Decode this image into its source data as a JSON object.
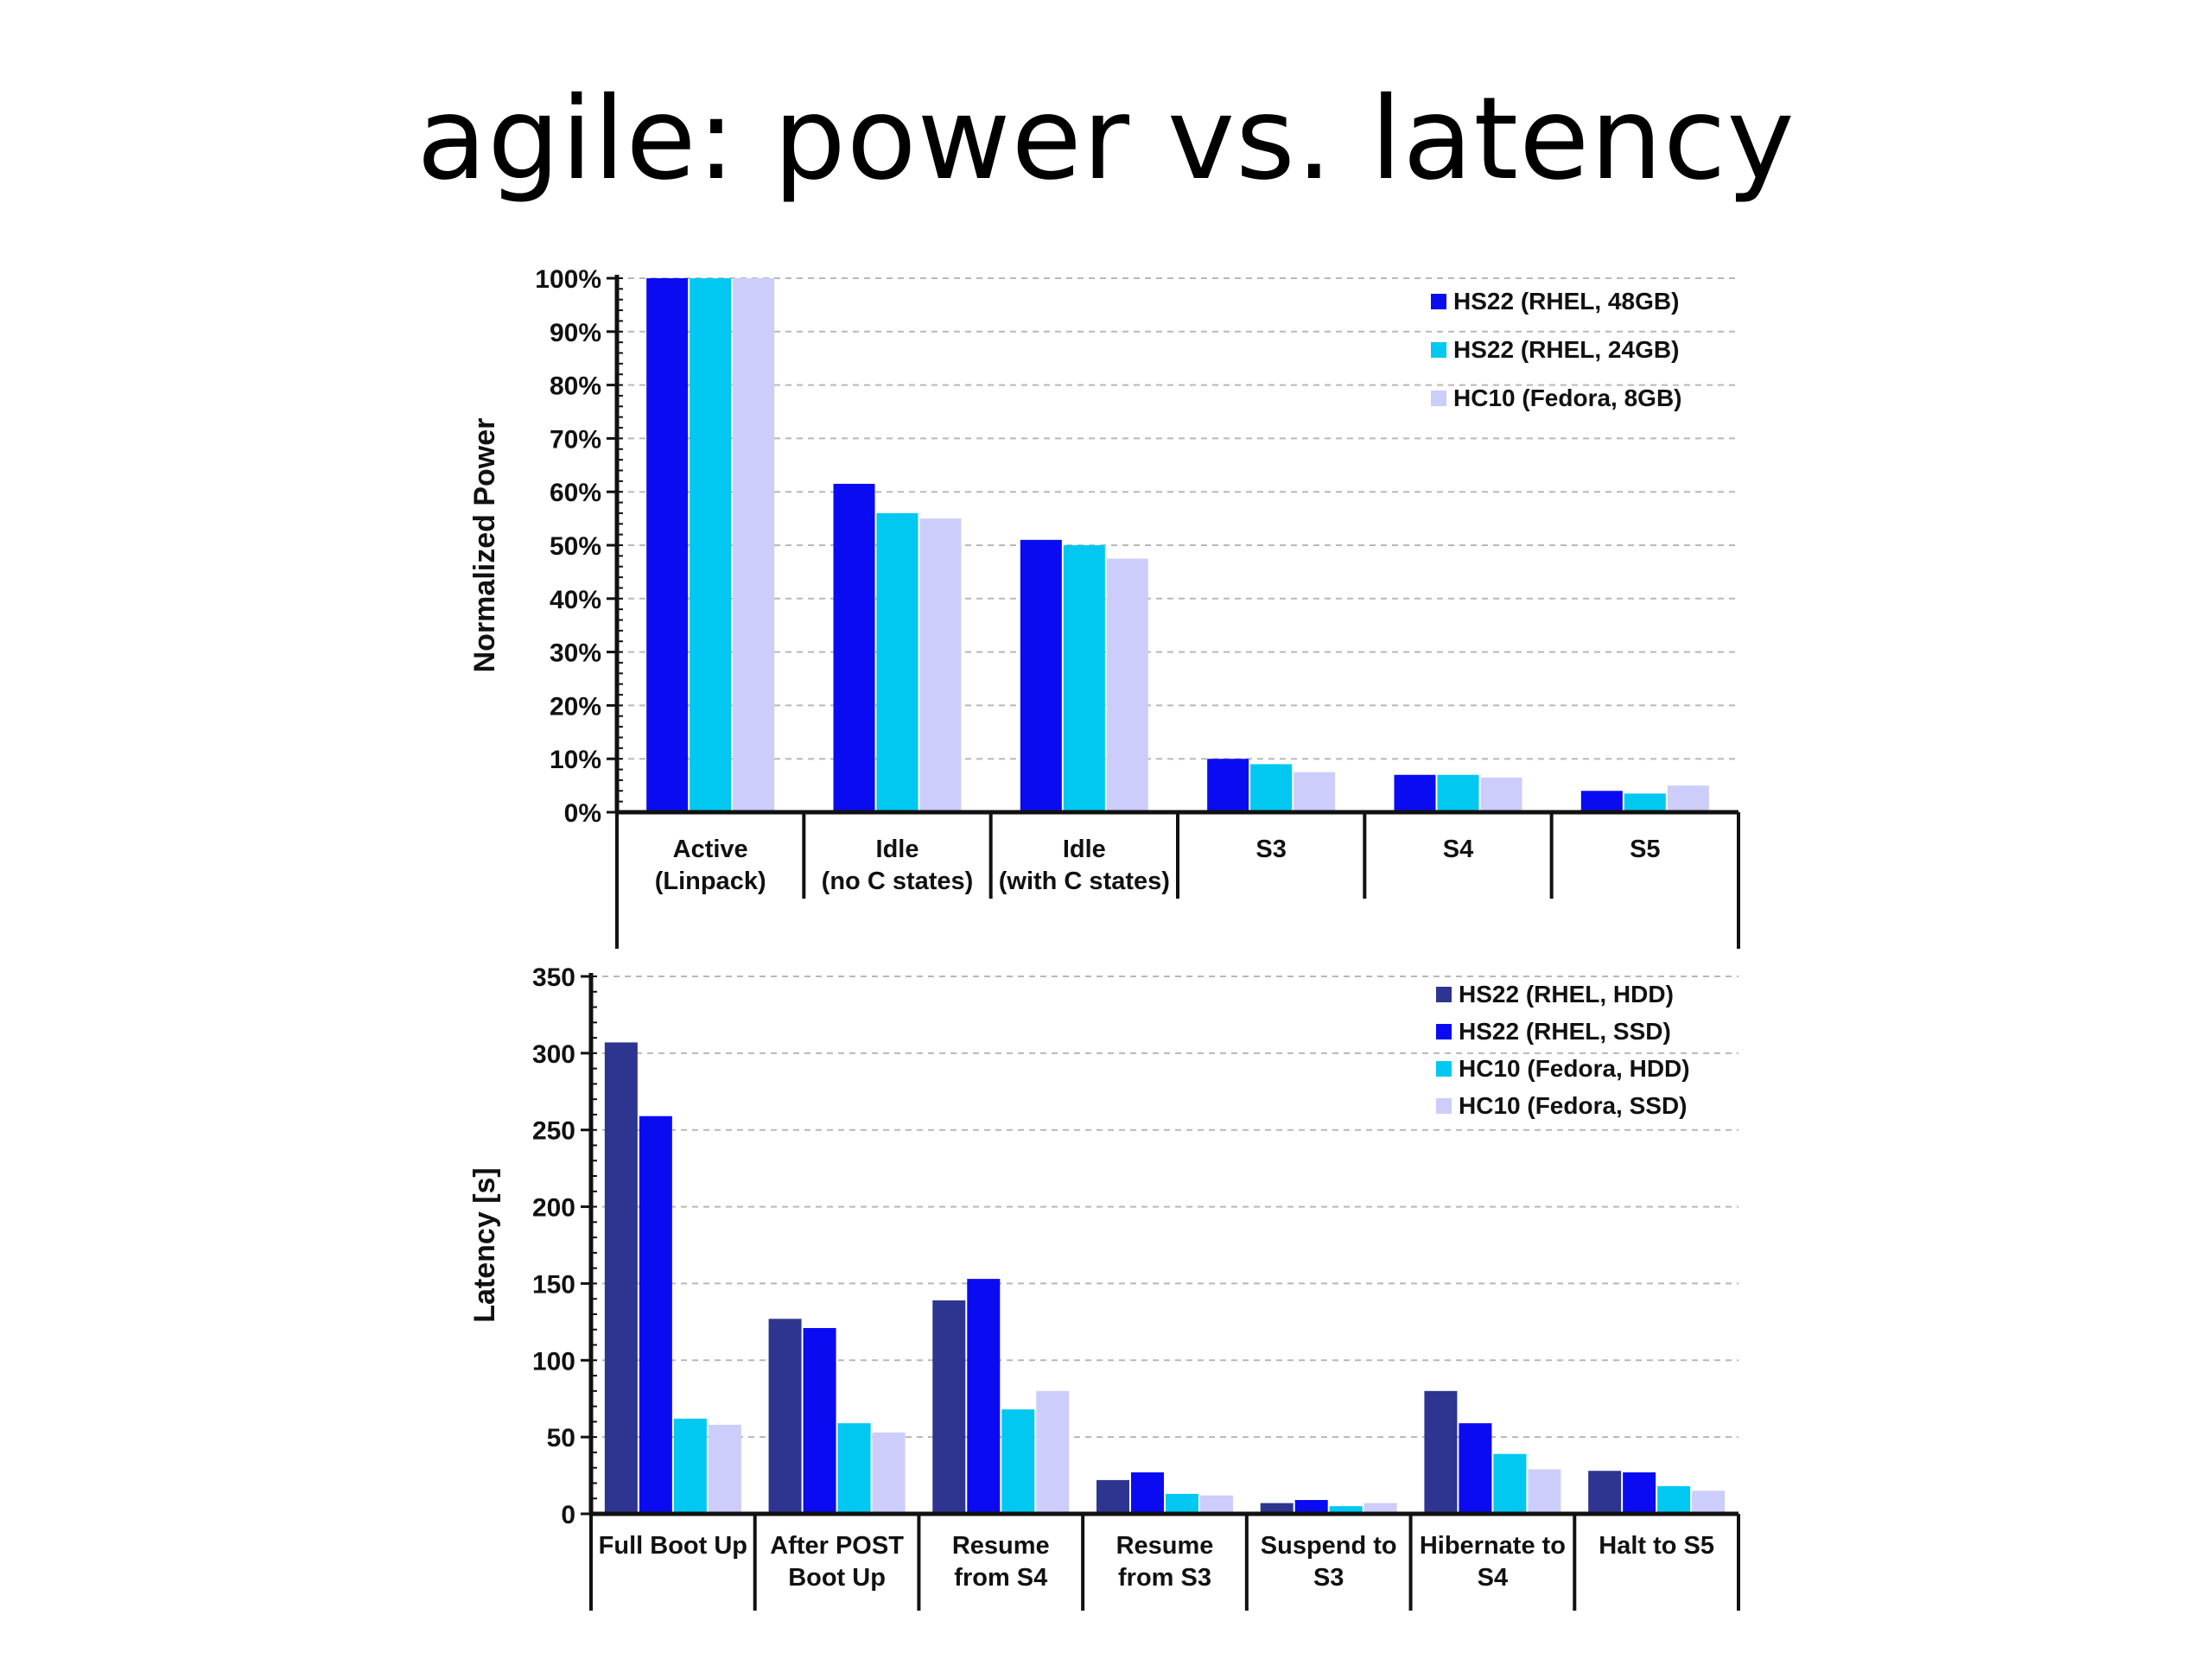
{
  "slide": {
    "title": "agile: power vs. latency"
  },
  "colors": {
    "navy": "#2e3590",
    "blue": "#0b0bf2",
    "cyan": "#00c8f0",
    "lavender": "#cccdfa"
  },
  "chart_data": [
    {
      "type": "bar",
      "title": "",
      "xlabel": "",
      "ylabel": "Normalized Power",
      "ylim": [
        0,
        100
      ],
      "yticks": [
        "0%",
        "10%",
        "20%",
        "30%",
        "40%",
        "50%",
        "60%",
        "70%",
        "80%",
        "90%",
        "100%"
      ],
      "grid": true,
      "legend_position": "top-right",
      "categories": [
        [
          "Active",
          "(Linpack)"
        ],
        [
          "Idle",
          "(no C states)"
        ],
        [
          "Idle",
          "(with C states)"
        ],
        [
          "S3"
        ],
        [
          "S4"
        ],
        [
          "S5"
        ]
      ],
      "series": [
        {
          "name": "HS22 (RHEL, 48GB)",
          "color": "#0b0bf2",
          "values": [
            100,
            61.5,
            51,
            10,
            7,
            4
          ]
        },
        {
          "name": "HS22 (RHEL, 24GB)",
          "color": "#00c8f0",
          "values": [
            100,
            56,
            50,
            9,
            7,
            3.5
          ]
        },
        {
          "name": "HC10 (Fedora, 8GB)",
          "color": "#cccdfa",
          "values": [
            100,
            55,
            47.5,
            7.5,
            6.5,
            5
          ]
        }
      ]
    },
    {
      "type": "bar",
      "title": "",
      "xlabel": "",
      "ylabel": "Latency [s]",
      "ylim": [
        0,
        350
      ],
      "yticks": [
        "0",
        "50",
        "100",
        "150",
        "200",
        "250",
        "300",
        "350"
      ],
      "grid": true,
      "legend_position": "top-right",
      "categories": [
        [
          "Full Boot Up"
        ],
        [
          "After POST",
          "Boot Up"
        ],
        [
          "Resume",
          "from S4"
        ],
        [
          "Resume",
          "from S3"
        ],
        [
          "Suspend to",
          "S3"
        ],
        [
          "Hibernate to",
          "S4"
        ],
        [
          "Halt to S5"
        ]
      ],
      "series": [
        {
          "name": "HS22 (RHEL, HDD)",
          "color": "#2e3590",
          "values": [
            307,
            127,
            139,
            22,
            7,
            80,
            28
          ]
        },
        {
          "name": "HS22 (RHEL, SSD)",
          "color": "#0b0bf2",
          "values": [
            259,
            121,
            153,
            27,
            9,
            59,
            27
          ]
        },
        {
          "name": "HC10 (Fedora, HDD)",
          "color": "#00c8f0",
          "values": [
            62,
            59,
            68,
            13,
            5,
            39,
            18
          ]
        },
        {
          "name": "HC10 (Fedora, SSD)",
          "color": "#cccdfa",
          "values": [
            58,
            53,
            80,
            12,
            7,
            29,
            15
          ]
        }
      ]
    }
  ]
}
